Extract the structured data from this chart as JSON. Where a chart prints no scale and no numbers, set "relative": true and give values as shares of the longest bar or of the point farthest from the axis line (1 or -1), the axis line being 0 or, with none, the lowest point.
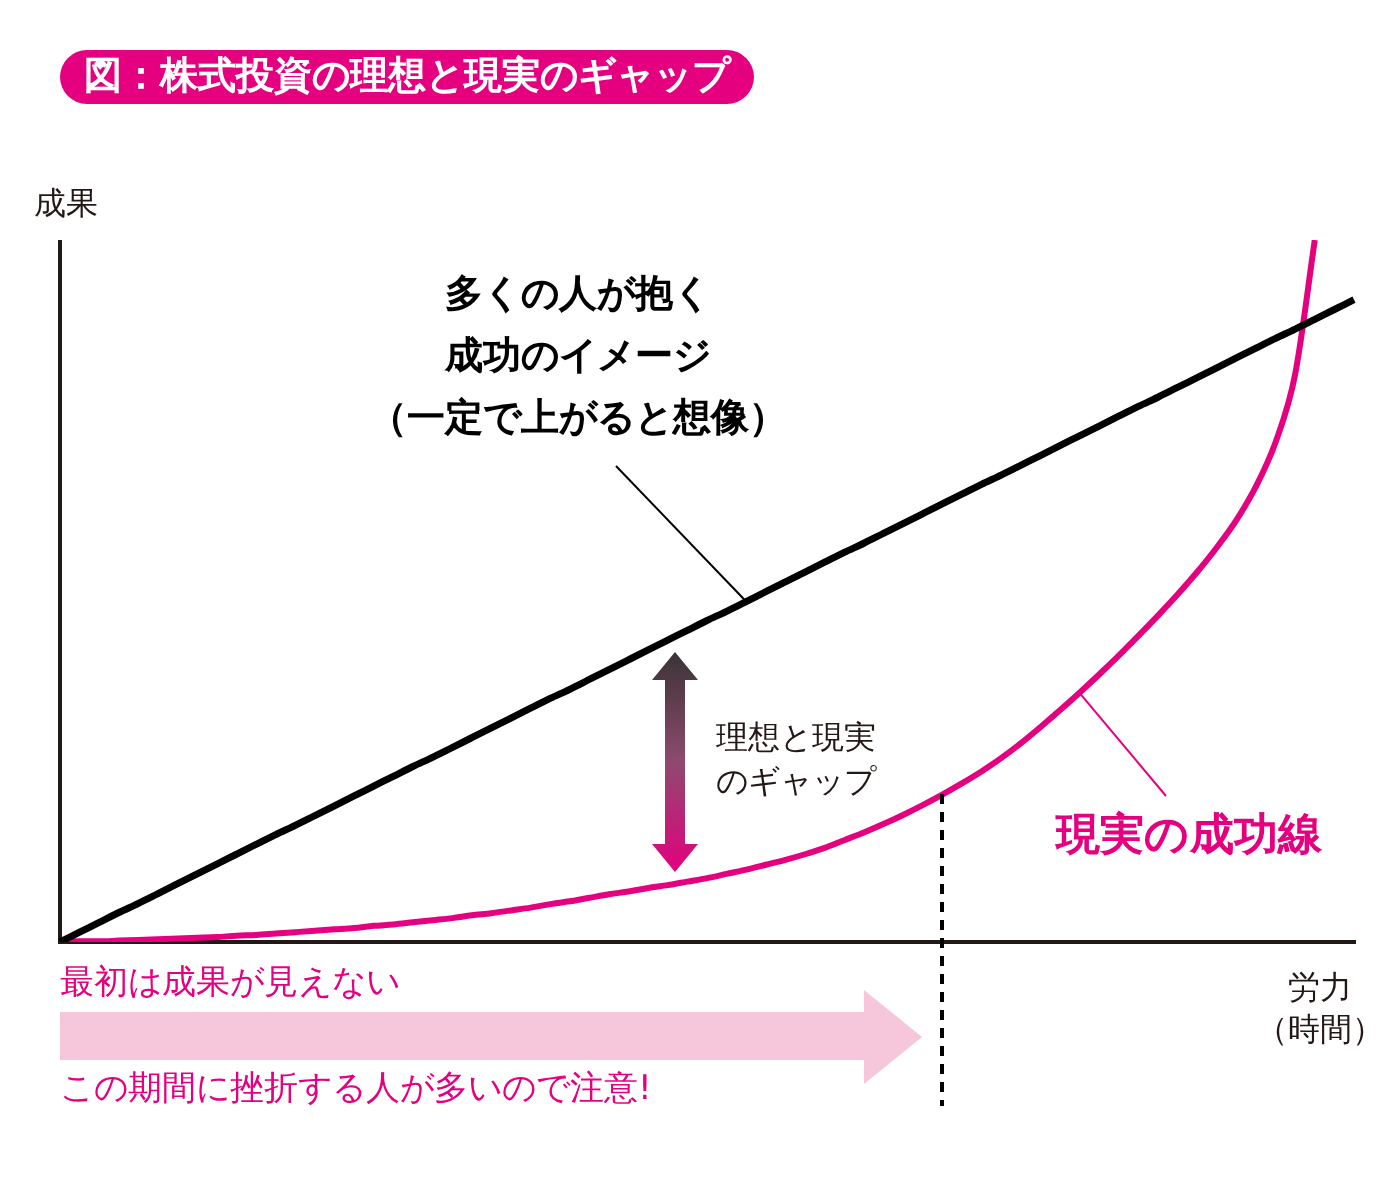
{
  "chart_data": {
    "type": "line",
    "title": "図：株式投資の理想と現実のギャップ",
    "xlabel": "労力（時間）",
    "ylabel": "成果",
    "relative": true,
    "categories": [
      null,
      null,
      null,
      null,
      null,
      null,
      null,
      null,
      null,
      null,
      null,
      null,
      null,
      null,
      null,
      null,
      null,
      null,
      null,
      null,
      null,
      null,
      null,
      null,
      null,
      null,
      null,
      null,
      null,
      null,
      null,
      null,
      null,
      null,
      null,
      null,
      null,
      null,
      null,
      null,
      null,
      null,
      null,
      null,
      null,
      null,
      null,
      null,
      null,
      null,
      null,
      null,
      null,
      null,
      null,
      null,
      null,
      null,
      null,
      null,
      null,
      null,
      null,
      null,
      null,
      null,
      null
    ],
    "series": [
      {
        "name": "多くの人が抱く成功のイメージ（一定で上がると想像）",
        "color": "#000000",
        "values": [
          0,
          0.014,
          0.028,
          0.042,
          0.055,
          0.069,
          0.083,
          0.097,
          0.111,
          0.125,
          0.139,
          0.153,
          0.166,
          0.18,
          0.194,
          0.208,
          0.222,
          0.236,
          0.25,
          0.263,
          0.277,
          0.291,
          0.305,
          0.319,
          0.333,
          0.347,
          0.36,
          0.374,
          0.388,
          0.402,
          0.416,
          0.43,
          0.444,
          0.458,
          0.471,
          0.485,
          0.499,
          0.513,
          0.527,
          0.541,
          0.555,
          0.568,
          0.582,
          0.596,
          0.61,
          0.624,
          0.638,
          0.652,
          0.665,
          0.679,
          0.693,
          0.707,
          0.721,
          0.735,
          0.749,
          0.763,
          0.776,
          0.79,
          0.804,
          0.818,
          0.832,
          0.846,
          0.86,
          0.873,
          0.887,
          0.901,
          0.915
        ]
      },
      {
        "name": "現実の成功線",
        "color": "#e4007f",
        "values": [
          0,
          0.001,
          0.001,
          0.002,
          0.003,
          0.004,
          0.005,
          0.006,
          0.007,
          0.009,
          0.01,
          0.012,
          0.014,
          0.016,
          0.018,
          0.02,
          0.023,
          0.025,
          0.028,
          0.031,
          0.034,
          0.038,
          0.041,
          0.045,
          0.049,
          0.054,
          0.058,
          0.063,
          0.068,
          0.072,
          0.077,
          0.081,
          0.086,
          0.091,
          0.097,
          0.103,
          0.11,
          0.117,
          0.125,
          0.134,
          0.145,
          0.156,
          0.168,
          0.181,
          0.195,
          0.21,
          0.226,
          0.243,
          0.262,
          0.283,
          0.306,
          0.33,
          0.355,
          0.381,
          0.408,
          0.436,
          0.465,
          0.495,
          0.527,
          0.562,
          0.601,
          0.649,
          0.712,
          0.809,
          1,
          null,
          null
        ]
      }
    ],
    "annotations": [
      "理想と現実のギャップ",
      "最初は成果が見えない",
      "この期間に挫折する人が多いので注意!"
    ]
  }
}
